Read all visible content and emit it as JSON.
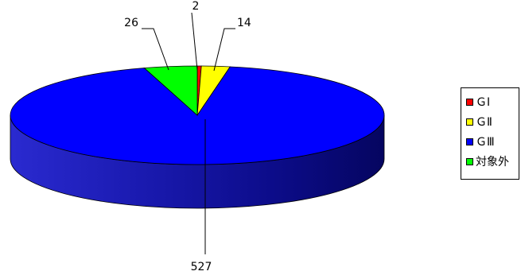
{
  "chart_data": {
    "type": "pie",
    "style": "3d",
    "title": "",
    "categories": [
      "ＧⅠ",
      "ＧⅡ",
      "ＧⅢ",
      "対象外"
    ],
    "values": [
      2,
      14,
      527,
      26
    ],
    "colors": [
      "#ff0000",
      "#ffff00",
      "#0000ff",
      "#00ff00"
    ],
    "legend_position": "right",
    "data_labels": [
      "2",
      "14",
      "527",
      "26"
    ]
  }
}
